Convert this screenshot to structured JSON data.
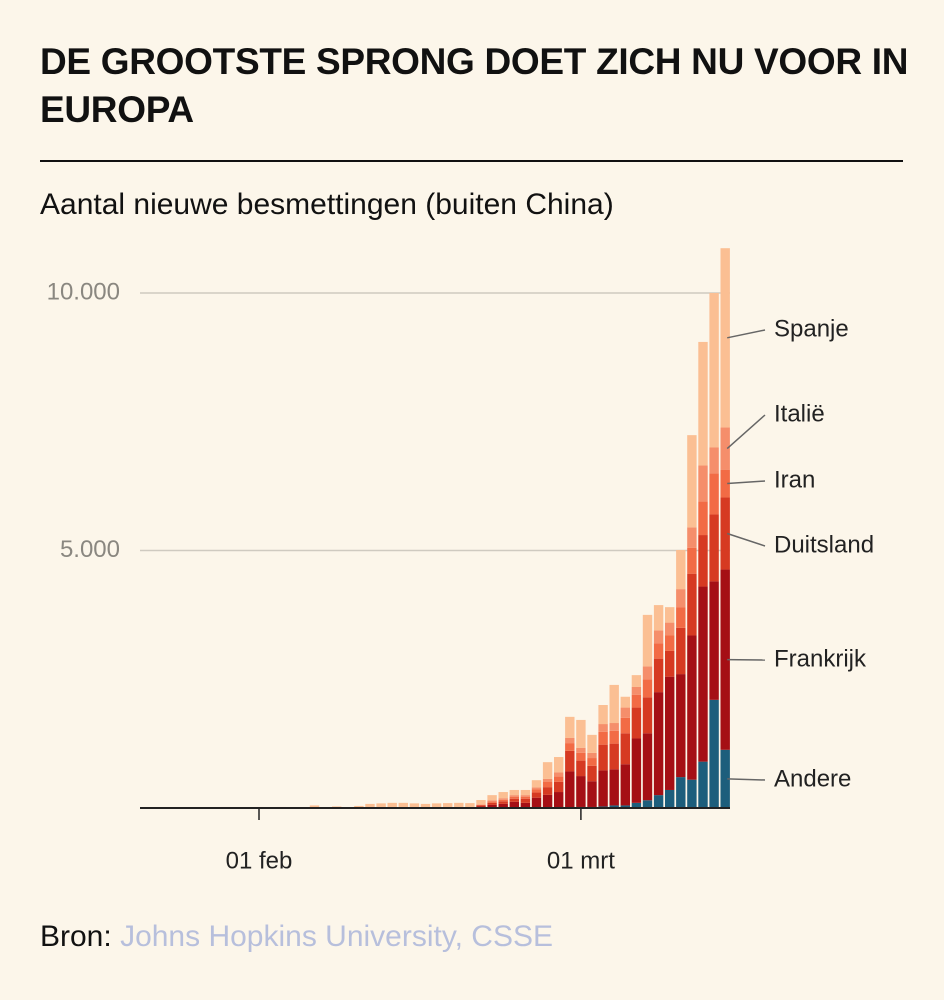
{
  "chart_data": {
    "type": "stacked-bar",
    "title": "DE GROOTSTE SPRONG DOET ZICH NU VOOR IN EUROPA",
    "subtitle": "Aantal nieuwe besmettingen (buiten China)",
    "categories": [
      null,
      null,
      null,
      null,
      null,
      null,
      null,
      null,
      null,
      null,
      "01 feb",
      null,
      null,
      null,
      null,
      null,
      null,
      null,
      null,
      null,
      null,
      null,
      null,
      null,
      null,
      null,
      null,
      null,
      null,
      null,
      null,
      null,
      null,
      null,
      null,
      null,
      null,
      null,
      null,
      "01 mrt",
      null,
      null,
      null,
      null,
      null,
      null,
      null,
      null,
      null,
      null,
      null,
      null,
      null
    ],
    "series": [
      {
        "name": "Andere",
        "color": "#1d5e7c",
        "values": [
          0,
          0,
          0,
          0,
          0,
          0,
          0,
          0,
          0,
          0,
          0,
          0,
          0,
          0,
          0,
          0,
          0,
          0,
          0,
          0,
          0,
          0,
          0,
          0,
          0,
          0,
          0,
          0,
          0,
          0,
          0,
          0,
          0,
          0,
          0,
          0,
          5,
          10,
          10,
          20,
          20,
          30,
          50,
          50,
          100,
          150,
          250,
          350,
          600,
          550,
          900,
          2100,
          1130
        ]
      },
      {
        "name": "Frankrijk",
        "color": "#a50f15",
        "values": [
          0,
          0,
          0,
          0,
          0,
          0,
          0,
          0,
          0,
          0,
          0,
          0,
          0,
          0,
          0,
          0,
          0,
          0,
          0,
          0,
          0,
          0,
          0,
          0,
          0,
          0,
          0,
          0,
          0,
          0,
          30,
          60,
          80,
          120,
          100,
          200,
          250,
          300,
          700,
          600,
          500,
          700,
          700,
          800,
          1250,
          1300,
          2000,
          2200,
          2000,
          2800,
          3400,
          2300,
          3500
        ]
      },
      {
        "name": "Duitsland",
        "color": "#d63a22",
        "values": [
          0,
          0,
          0,
          0,
          0,
          0,
          0,
          0,
          0,
          0,
          0,
          0,
          0,
          0,
          0,
          0,
          0,
          0,
          0,
          0,
          0,
          0,
          0,
          0,
          0,
          0,
          0,
          0,
          0,
          0,
          20,
          40,
          50,
          60,
          80,
          100,
          150,
          200,
          400,
          300,
          300,
          500,
          500,
          600,
          600,
          700,
          650,
          500,
          900,
          1200,
          1000,
          1300,
          1400
        ]
      },
      {
        "name": "Iran",
        "color": "#f26b45",
        "values": [
          0,
          0,
          0,
          0,
          0,
          0,
          0,
          0,
          0,
          0,
          0,
          0,
          0,
          0,
          0,
          0,
          0,
          0,
          0,
          0,
          0,
          0,
          0,
          0,
          0,
          0,
          0,
          0,
          0,
          0,
          10,
          30,
          30,
          40,
          40,
          60,
          100,
          100,
          150,
          150,
          150,
          250,
          250,
          300,
          250,
          350,
          300,
          300,
          400,
          500,
          650,
          800,
          540
        ]
      },
      {
        "name": "Italië",
        "color": "#f58e6b",
        "values": [
          0,
          0,
          0,
          0,
          0,
          0,
          0,
          0,
          0,
          0,
          0,
          0,
          0,
          0,
          0,
          0,
          0,
          0,
          0,
          0,
          0,
          0,
          0,
          0,
          0,
          0,
          0,
          0,
          0,
          0,
          10,
          20,
          30,
          30,
          30,
          40,
          60,
          80,
          100,
          100,
          100,
          150,
          150,
          200,
          150,
          250,
          250,
          250,
          350,
          400,
          700,
          500,
          820
        ]
      },
      {
        "name": "Spanje",
        "color": "#fbbf93",
        "values": [
          0,
          0,
          0,
          10,
          0,
          0,
          0,
          20,
          10,
          0,
          20,
          10,
          20,
          0,
          0,
          50,
          10,
          30,
          0,
          40,
          80,
          90,
          100,
          100,
          90,
          80,
          90,
          95,
          100,
          95,
          85,
          100,
          120,
          100,
          100,
          140,
          325,
          300,
          410,
          540,
          350,
          370,
          740,
          210,
          230,
          1000,
          490,
          300,
          760,
          1790,
          2400,
          3000,
          3480
        ]
      }
    ],
    "ylim": [
      0,
      11000
    ],
    "yticks": [
      {
        "value": 5000,
        "label": "5.000"
      },
      {
        "value": 10000,
        "label": "10.000"
      }
    ],
    "grid": true,
    "source": {
      "label": "Bron:",
      "text": "Johns Hopkins University, CSSE"
    }
  }
}
